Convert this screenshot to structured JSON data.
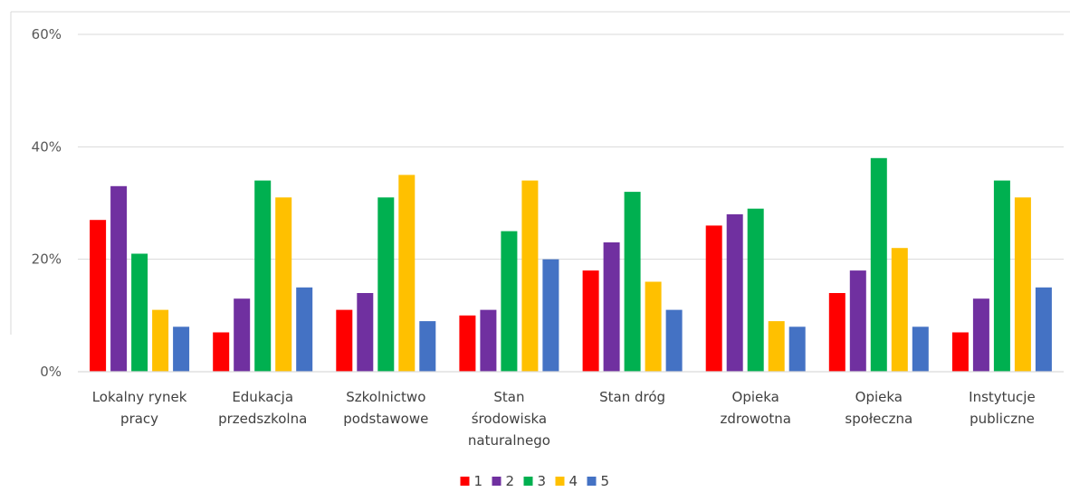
{
  "chart_data": {
    "type": "bar",
    "categories": [
      [
        "Lokalny rynek",
        "pracy"
      ],
      [
        "Edukacja",
        "przedszkolna"
      ],
      [
        "Szkolnictwo",
        "podstawowe"
      ],
      [
        "Stan",
        "środowiska",
        "naturalnego"
      ],
      [
        "Stan dróg"
      ],
      [
        "Opieka",
        "zdrowotna"
      ],
      [
        "Opieka",
        "społeczna"
      ],
      [
        "Instytucje",
        "publiczne"
      ]
    ],
    "series": [
      {
        "name": "1",
        "color": "#ff0000",
        "values": [
          27,
          7,
          11,
          10,
          18,
          26,
          14,
          7
        ]
      },
      {
        "name": "2",
        "color": "#7030a0",
        "values": [
          33,
          13,
          14,
          11,
          23,
          28,
          18,
          13
        ]
      },
      {
        "name": "3",
        "color": "#00b050",
        "values": [
          21,
          34,
          31,
          25,
          32,
          29,
          38,
          34
        ]
      },
      {
        "name": "4",
        "color": "#ffc000",
        "values": [
          11,
          31,
          35,
          34,
          16,
          9,
          22,
          31
        ]
      },
      {
        "name": "5",
        "color": "#4472c4",
        "values": [
          8,
          15,
          9,
          20,
          11,
          8,
          8,
          15
        ]
      }
    ],
    "ylim": [
      0,
      60
    ],
    "yticks": [
      0,
      20,
      40,
      60
    ],
    "ytick_labels": [
      "0%",
      "20%",
      "40%",
      "60%"
    ],
    "grid": true,
    "legend_position": "bottom"
  }
}
